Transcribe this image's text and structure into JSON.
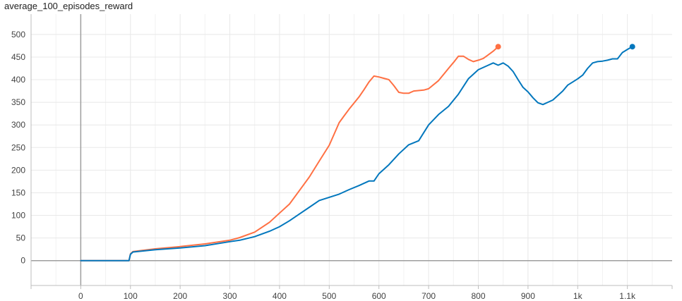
{
  "chart_data": {
    "type": "line",
    "title": "average_100_episodes_reward",
    "xlim": [
      -100,
      1190
    ],
    "ylim": [
      -55,
      545
    ],
    "x_ticks": [
      {
        "value": 0,
        "label": "0"
      },
      {
        "value": 100,
        "label": "100"
      },
      {
        "value": 200,
        "label": "200"
      },
      {
        "value": 300,
        "label": "300"
      },
      {
        "value": 400,
        "label": "400"
      },
      {
        "value": 500,
        "label": "500"
      },
      {
        "value": 600,
        "label": "600"
      },
      {
        "value": 700,
        "label": "700"
      },
      {
        "value": 800,
        "label": "800"
      },
      {
        "value": 900,
        "label": "900"
      },
      {
        "value": 1000,
        "label": "1k"
      },
      {
        "value": 1100,
        "label": "1.1k"
      }
    ],
    "y_ticks": [
      0,
      50,
      100,
      150,
      200,
      250,
      300,
      350,
      400,
      450,
      500
    ],
    "grid": true,
    "series": [
      {
        "color": "#ff7043",
        "points": [
          [
            0,
            0
          ],
          [
            97,
            0
          ],
          [
            100,
            15
          ],
          [
            105,
            20
          ],
          [
            150,
            26
          ],
          [
            200,
            31
          ],
          [
            250,
            37
          ],
          [
            300,
            45
          ],
          [
            320,
            51
          ],
          [
            350,
            63
          ],
          [
            380,
            85
          ],
          [
            400,
            105
          ],
          [
            420,
            125
          ],
          [
            440,
            155
          ],
          [
            460,
            185
          ],
          [
            480,
            220
          ],
          [
            500,
            255
          ],
          [
            510,
            280
          ],
          [
            520,
            305
          ],
          [
            530,
            320
          ],
          [
            540,
            335
          ],
          [
            560,
            362
          ],
          [
            570,
            378
          ],
          [
            580,
            395
          ],
          [
            590,
            408
          ],
          [
            600,
            406
          ],
          [
            610,
            403
          ],
          [
            620,
            400
          ],
          [
            630,
            387
          ],
          [
            640,
            372
          ],
          [
            650,
            370
          ],
          [
            660,
            370
          ],
          [
            670,
            375
          ],
          [
            690,
            377
          ],
          [
            700,
            380
          ],
          [
            720,
            398
          ],
          [
            740,
            425
          ],
          [
            750,
            438
          ],
          [
            760,
            452
          ],
          [
            770,
            452
          ],
          [
            780,
            445
          ],
          [
            790,
            440
          ],
          [
            800,
            443
          ],
          [
            810,
            447
          ],
          [
            820,
            455
          ],
          [
            830,
            463
          ],
          [
            840,
            473
          ]
        ]
      },
      {
        "color": "#0277bd",
        "points": [
          [
            0,
            0
          ],
          [
            97,
            0
          ],
          [
            100,
            14
          ],
          [
            105,
            19
          ],
          [
            150,
            24
          ],
          [
            200,
            28
          ],
          [
            250,
            33
          ],
          [
            300,
            42
          ],
          [
            320,
            45
          ],
          [
            350,
            53
          ],
          [
            380,
            65
          ],
          [
            400,
            75
          ],
          [
            420,
            88
          ],
          [
            440,
            103
          ],
          [
            460,
            118
          ],
          [
            480,
            133
          ],
          [
            500,
            140
          ],
          [
            520,
            147
          ],
          [
            540,
            157
          ],
          [
            560,
            166
          ],
          [
            580,
            176
          ],
          [
            590,
            176
          ],
          [
            600,
            192
          ],
          [
            620,
            212
          ],
          [
            640,
            236
          ],
          [
            660,
            256
          ],
          [
            680,
            265
          ],
          [
            700,
            300
          ],
          [
            720,
            323
          ],
          [
            740,
            341
          ],
          [
            760,
            368
          ],
          [
            780,
            402
          ],
          [
            800,
            422
          ],
          [
            820,
            432
          ],
          [
            830,
            437
          ],
          [
            840,
            432
          ],
          [
            850,
            437
          ],
          [
            860,
            430
          ],
          [
            870,
            418
          ],
          [
            880,
            400
          ],
          [
            890,
            383
          ],
          [
            900,
            373
          ],
          [
            910,
            360
          ],
          [
            920,
            349
          ],
          [
            930,
            345
          ],
          [
            940,
            350
          ],
          [
            950,
            355
          ],
          [
            960,
            365
          ],
          [
            970,
            375
          ],
          [
            980,
            388
          ],
          [
            990,
            395
          ],
          [
            1000,
            402
          ],
          [
            1010,
            410
          ],
          [
            1020,
            425
          ],
          [
            1030,
            437
          ],
          [
            1040,
            440
          ],
          [
            1050,
            441
          ],
          [
            1060,
            443
          ],
          [
            1070,
            446
          ],
          [
            1080,
            446
          ],
          [
            1090,
            460
          ],
          [
            1100,
            467
          ],
          [
            1110,
            473
          ]
        ]
      }
    ]
  }
}
